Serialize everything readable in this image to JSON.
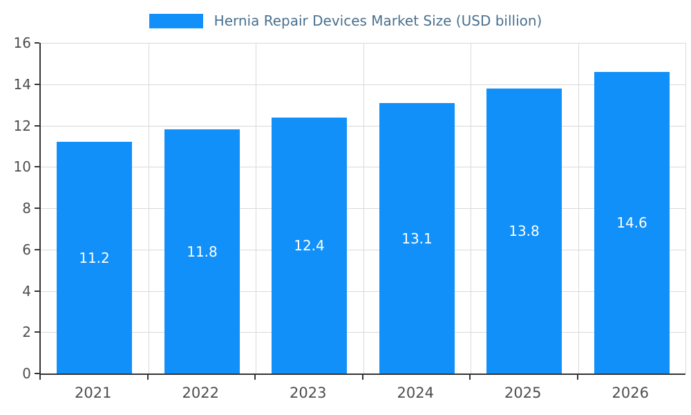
{
  "chart_data": {
    "type": "bar",
    "title": "Hernia Repair Devices Market Size (USD billion)",
    "categories": [
      "2021",
      "2022",
      "2023",
      "2024",
      "2025",
      "2026"
    ],
    "values": [
      11.2,
      11.8,
      12.4,
      13.1,
      13.8,
      14.6
    ],
    "value_labels": [
      "11.2",
      "11.8",
      "12.4",
      "13.1",
      "13.8",
      "14.6"
    ],
    "xlabel": "",
    "ylabel": "",
    "ylim": [
      0,
      16
    ],
    "ytick_step": 2,
    "ytick_labels": [
      "0",
      "2",
      "4",
      "6",
      "8",
      "10",
      "12",
      "14",
      "16"
    ],
    "grid": true,
    "legend_position": "top",
    "colors": {
      "bar": "#1190fa",
      "value_label": "#ffffff",
      "title": "#4a708e",
      "grid": "#d9d9d9",
      "axis": "#333333",
      "tick_label": "#4d4d4d"
    }
  }
}
